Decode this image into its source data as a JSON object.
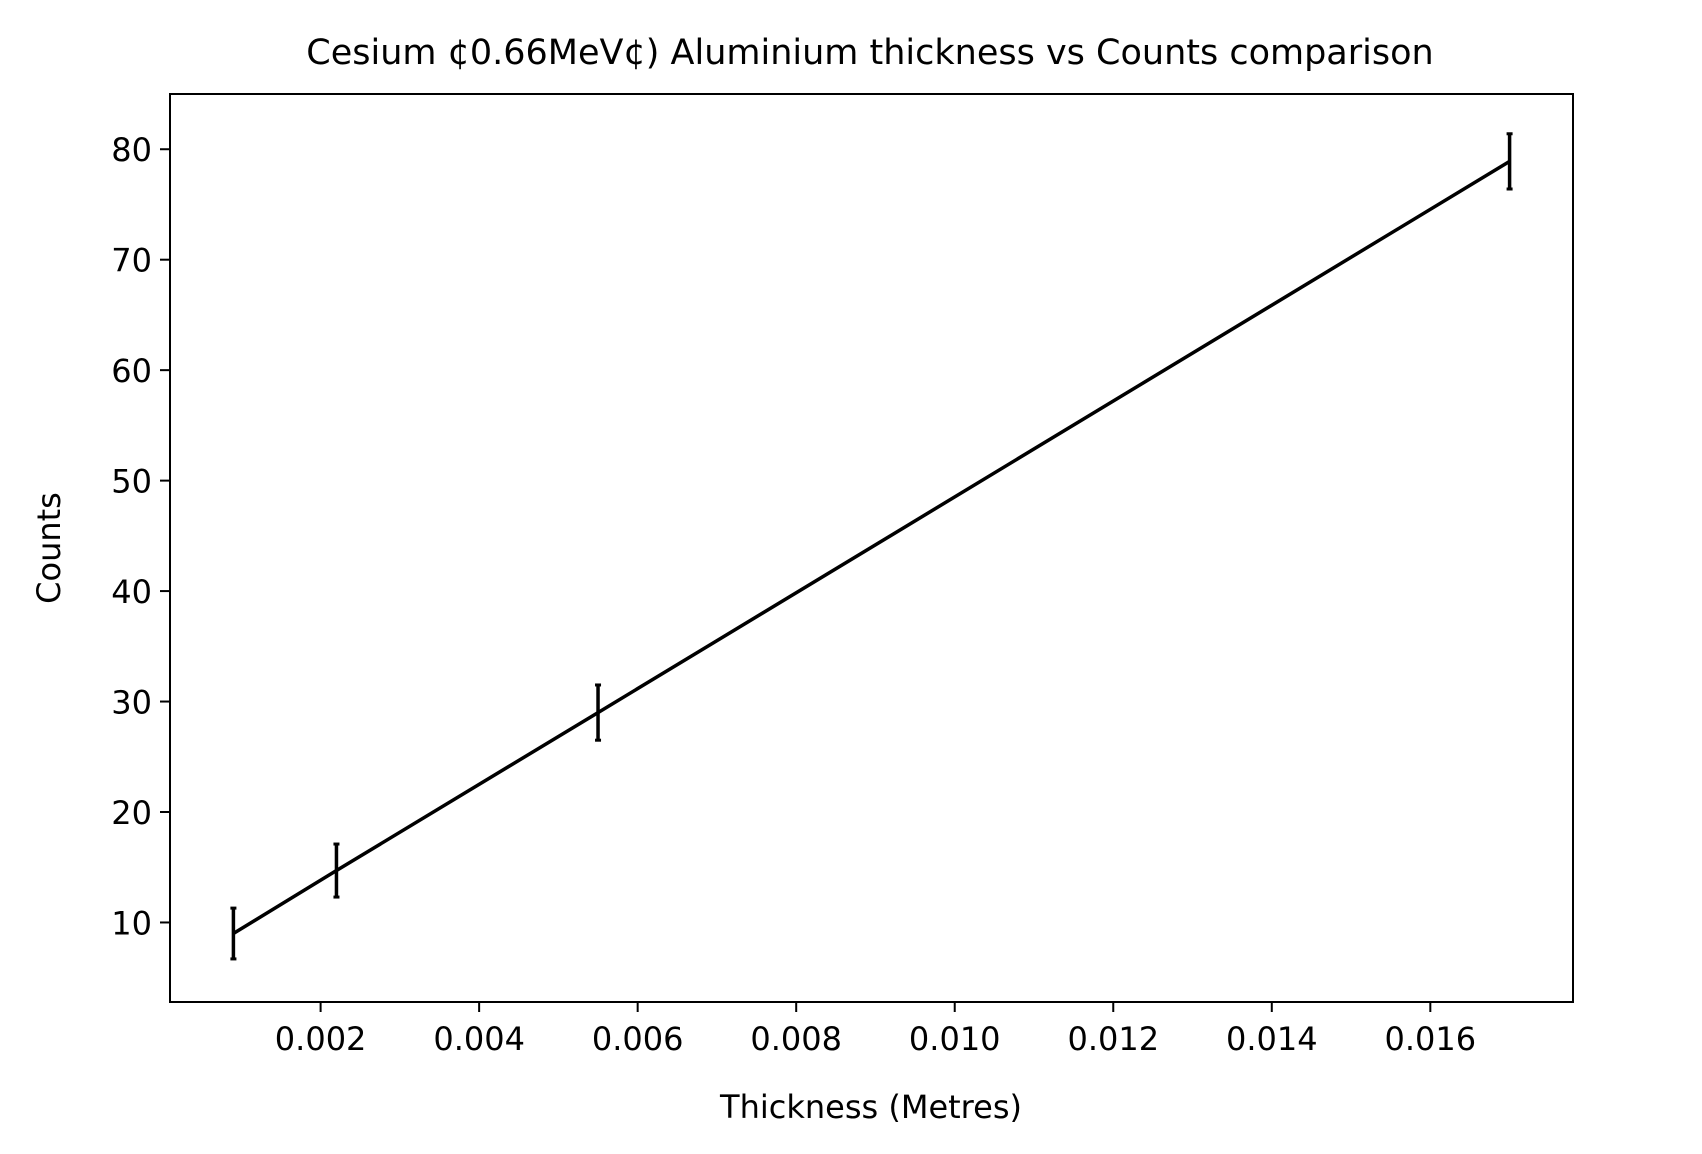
{
  "chart_data": {
    "type": "line",
    "title": "Cesium ¢0.66MeV¢) Aluminium thickness vs Counts comparison",
    "xlabel": "Thickness (Metres)",
    "ylabel": "Counts",
    "xlim": [
      0.0001,
      0.0178
    ],
    "ylim": [
      2.8,
      85
    ],
    "xticks": [
      0.002,
      0.004,
      0.006,
      0.008,
      0.01,
      0.012,
      0.014,
      0.016
    ],
    "xtick_labels": [
      "0.002",
      "0.004",
      "0.006",
      "0.008",
      "0.010",
      "0.012",
      "0.014",
      "0.016"
    ],
    "yticks": [
      10,
      20,
      30,
      40,
      50,
      60,
      70,
      80
    ],
    "ytick_labels": [
      "10",
      "20",
      "30",
      "40",
      "50",
      "60",
      "70",
      "80"
    ],
    "grid": false,
    "series": [
      {
        "x": [
          0.0009,
          0.0022,
          0.0055,
          0.017
        ],
        "y": [
          9.0,
          14.7,
          29.0,
          78.9
        ],
        "yerr": [
          2.3,
          2.4,
          2.5,
          2.5
        ],
        "color": "#000000"
      }
    ]
  }
}
